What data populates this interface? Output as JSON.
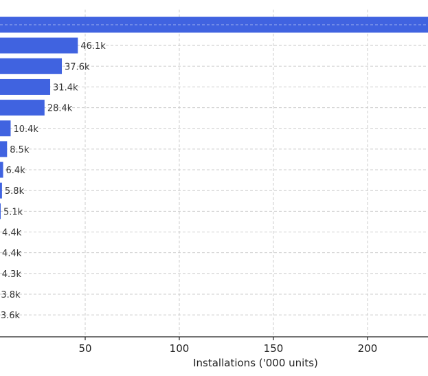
{
  "chart_data": {
    "type": "bar",
    "orientation": "horizontal",
    "xlabel": "Installations ('000 units)",
    "x_ticks": [
      50,
      100,
      150,
      200
    ],
    "grid": true,
    "bars": [
      {
        "value": 245.0,
        "label": ""
      },
      {
        "value": 46.1,
        "label": "46.1k"
      },
      {
        "value": 37.6,
        "label": "37.6k"
      },
      {
        "value": 31.4,
        "label": "31.4k"
      },
      {
        "value": 28.4,
        "label": "28.4k"
      },
      {
        "value": 10.4,
        "label": "10.4k"
      },
      {
        "value": 8.5,
        "label": "8.5k"
      },
      {
        "value": 6.4,
        "label": "6.4k"
      },
      {
        "value": 5.8,
        "label": "5.8k"
      },
      {
        "value": 5.1,
        "label": "5.1k"
      },
      {
        "value": 4.4,
        "label": "4.4k"
      },
      {
        "value": 4.4,
        "label": "4.4k"
      },
      {
        "value": 4.3,
        "label": "4.3k"
      },
      {
        "value": 3.8,
        "label": "3.8k"
      },
      {
        "value": 3.6,
        "label": "3.6k"
      }
    ]
  }
}
